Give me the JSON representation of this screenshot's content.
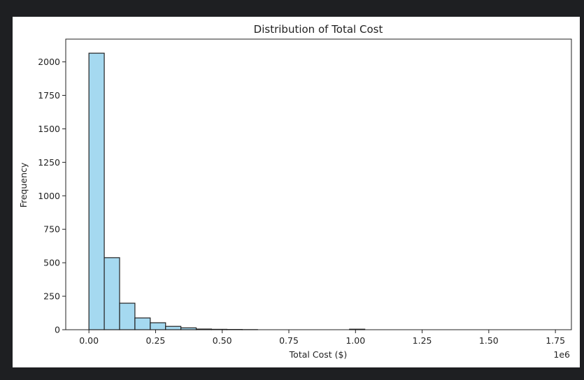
{
  "chart_data": {
    "type": "bar",
    "title": "Distribution of Total Cost",
    "xlabel": "Total Cost ($)",
    "ylabel": "Frequency",
    "x_offset_text": "1e6",
    "xlim": [
      -0.087,
      1.81
    ],
    "ylim": [
      0,
      2170
    ],
    "xticks": [
      0.0,
      0.25,
      0.5,
      0.75,
      1.0,
      1.25,
      1.5,
      1.75
    ],
    "xtick_labels": [
      "0.00",
      "0.25",
      "0.50",
      "0.75",
      "1.00",
      "1.25",
      "1.50",
      "1.75"
    ],
    "yticks": [
      0,
      250,
      500,
      750,
      1000,
      1250,
      1500,
      1750,
      2000
    ],
    "ytick_labels": [
      "0",
      "250",
      "500",
      "750",
      "1000",
      "1250",
      "1500",
      "1750",
      "2000"
    ],
    "bin_width": 0.0575,
    "bin_starts": [
      0.0,
      0.0575,
      0.115,
      0.1725,
      0.23,
      0.2875,
      0.345,
      0.4025,
      0.46,
      0.5175,
      0.575,
      0.9775
    ],
    "values": [
      2065,
      538,
      198,
      88,
      52,
      25,
      14,
      5,
      3,
      2,
      1,
      4
    ],
    "bar_color": "#a5d9f0",
    "edge_color": "#222222",
    "grid": false
  }
}
